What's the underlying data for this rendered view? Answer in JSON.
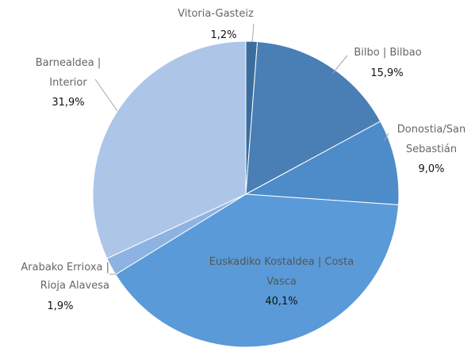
{
  "chart_data": {
    "type": "pie",
    "categories": [
      "Vitoria-Gasteiz",
      "Bilbo | Bilbao",
      "Donostia/San Sebastián",
      "Euskadiko Kostaldea | Costa Vasca",
      "Arabako Errioxa | Rioja Alavesa",
      "Barnealdea | Interior"
    ],
    "values": [
      1.2,
      15.9,
      9.0,
      40.1,
      1.9,
      31.9
    ],
    "value_labels": [
      "1,2%",
      "15,9%",
      "9,0%",
      "40,1%",
      "1,9%",
      "31,9%"
    ],
    "colors": [
      "#3b6c9e",
      "#4a7fb6",
      "#4e8bc9",
      "#5a9ad8",
      "#8db3e2",
      "#adc6e8"
    ]
  }
}
